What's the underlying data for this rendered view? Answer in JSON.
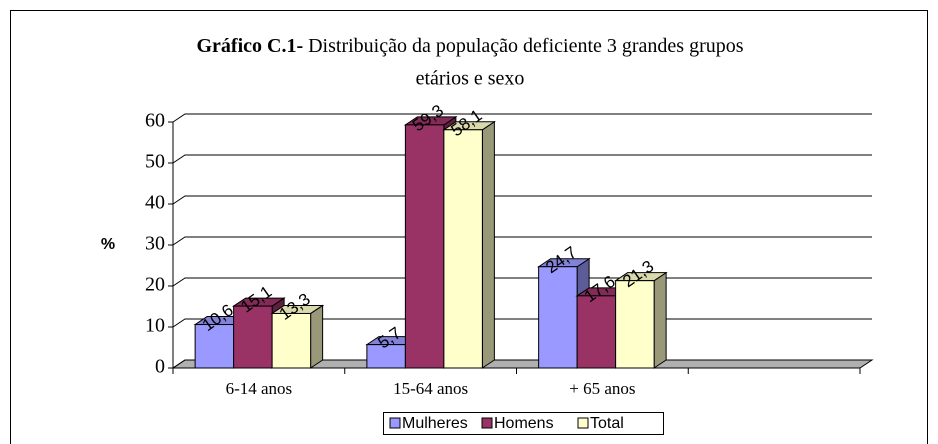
{
  "chart_data": {
    "type": "bar3d",
    "title_label": "Gráfico C.1-",
    "title": "Distribuição da população deficiente 3 grandes grupos",
    "title_line2": "etários e sexo",
    "ylabel": "%",
    "categories": [
      "6-14 anos",
      "15-64 anos",
      "+ 65 anos",
      null
    ],
    "series": [
      {
        "name": "Mulheres",
        "color": "#9999ff",
        "values": [
          10.6,
          5.7,
          24.7,
          null
        ],
        "value_labels": [
          "10,6",
          "5,7",
          "24,7",
          null
        ]
      },
      {
        "name": "Homens",
        "color": "#993366",
        "values": [
          15.1,
          59.3,
          17.6,
          null
        ],
        "value_labels": [
          "15,1",
          "59,3",
          "17,6",
          null
        ]
      },
      {
        "name": "Total",
        "color": "#ffffcc",
        "values": [
          13.3,
          58.1,
          21.3,
          null
        ],
        "value_labels": [
          "13,3",
          "58,1",
          "21,3",
          null
        ]
      }
    ],
    "ylim": [
      0,
      60
    ],
    "yticks": [
      0,
      10,
      20,
      30,
      40,
      50,
      60
    ],
    "grid": true,
    "legend": "bottom"
  }
}
